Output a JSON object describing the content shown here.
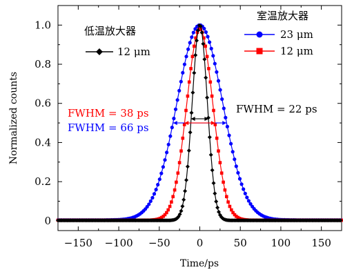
{
  "chart_data": {
    "type": "scatter",
    "xlabel": "Time/ps",
    "ylabel": "Normalized counts",
    "xlim": [
      -175,
      175
    ],
    "ylim": [
      -0.05,
      1.1
    ],
    "xticks": [
      -150,
      -100,
      -50,
      0,
      50,
      100,
      150
    ],
    "yticks": [
      0,
      0.2,
      0.4,
      0.6,
      0.8,
      1.0
    ],
    "xtick_labels": [
      "−150",
      "−100",
      "−50",
      "0",
      "50",
      "100",
      "150"
    ],
    "ytick_labels": [
      "0",
      "0.2",
      "0.4",
      "0.6",
      "0.8",
      "1.0"
    ],
    "grid": false,
    "series": [
      {
        "name": "23 μm",
        "group": "室温放大器",
        "color": "#0000ff",
        "marker": "circle",
        "fwhm": 66,
        "center": 0,
        "peak": 1.0,
        "baseline": 0.004
      },
      {
        "name": "12 μm",
        "group": "室温放大器",
        "color": "#ff0000",
        "marker": "square",
        "fwhm": 38,
        "center": 0,
        "peak": 0.98,
        "baseline": 0.003
      },
      {
        "name": "12 μm",
        "group": "低温放大器",
        "color": "#000000",
        "marker": "diamond",
        "fwhm": 22,
        "center": 0,
        "peak": 1.0,
        "baseline": 0.002
      }
    ],
    "legends": [
      {
        "title": "低温放大器",
        "entries": [
          2
        ]
      },
      {
        "title": "室温放大器",
        "entries": [
          0,
          1
        ]
      }
    ],
    "annotations": [
      {
        "text": "FWHM = 38 ps",
        "color": "#ff0000"
      },
      {
        "text": "FWHM = 66 ps",
        "color": "#0000ff"
      },
      {
        "text": "FWHM = 22 ps",
        "color": "#000000"
      }
    ]
  }
}
